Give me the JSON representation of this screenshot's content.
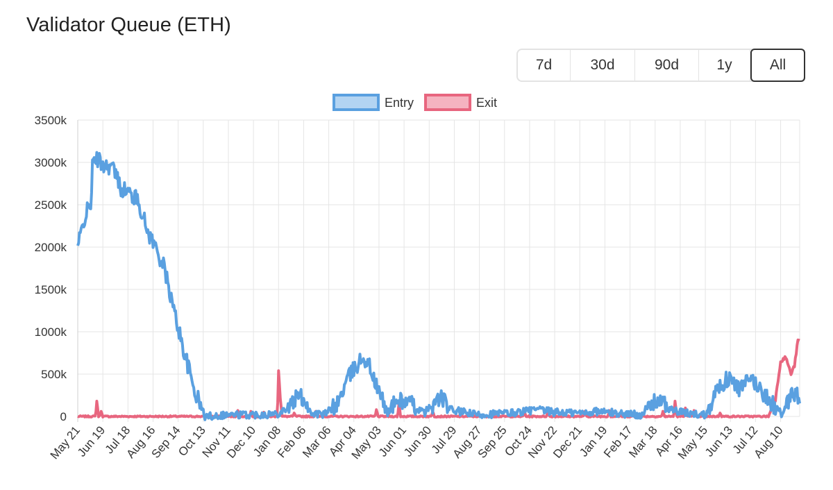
{
  "page": {
    "title": "Validator Queue (ETH)"
  },
  "range_selector": {
    "options": [
      "7d",
      "30d",
      "90d",
      "1y",
      "All"
    ],
    "selected": "All"
  },
  "colors": {
    "entry_line": "#5aa0e0",
    "entry_fill": "#b3d4f2",
    "exit_line": "#e8667f",
    "exit_fill": "#f5b3c0",
    "grid": "#e5e5e5",
    "tick_text": "#333333"
  },
  "chart_data": {
    "type": "line",
    "title": "",
    "xlabel": "",
    "ylabel": "",
    "legend_position": "top-center",
    "grid": true,
    "ylim": [
      0,
      3500000
    ],
    "y_ticks": [
      "0",
      "500k",
      "1000k",
      "1500k",
      "2000k",
      "2500k",
      "3000k",
      "3500k"
    ],
    "x_tick_labels": [
      "May 21",
      "Jun 19",
      "Jul 18",
      "Aug 16",
      "Sep 14",
      "Oct 13",
      "Nov 11",
      "Dec 10",
      "Jan 08",
      "Feb 06",
      "Mar 06",
      "Apr 04",
      "May 03",
      "Jun 01",
      "Jun 30",
      "Jul 29",
      "Aug 27",
      "Sep 25",
      "Oct 24",
      "Nov 22",
      "Dec 21",
      "Jan 19",
      "Feb 17",
      "Mar 18",
      "Apr 16",
      "May 15",
      "Jun 13",
      "Jul 12",
      "Aug 10"
    ],
    "x_tick_index_step": 29,
    "num_points": 835,
    "series": [
      {
        "name": "Entry",
        "color": "#5aa0e0",
        "anchors": [
          [
            0,
            2000000
          ],
          [
            8,
            2350000
          ],
          [
            12,
            2450000
          ],
          [
            15,
            2500000
          ],
          [
            17,
            2950000
          ],
          [
            22,
            3050000
          ],
          [
            28,
            2980000
          ],
          [
            40,
            2950000
          ],
          [
            50,
            2700000
          ],
          [
            58,
            2650000
          ],
          [
            70,
            2550000
          ],
          [
            80,
            2200000
          ],
          [
            90,
            2000000
          ],
          [
            100,
            1750000
          ],
          [
            110,
            1300000
          ],
          [
            122,
            800000
          ],
          [
            135,
            300000
          ],
          [
            147,
            0
          ],
          [
            170,
            20000
          ],
          [
            200,
            20000
          ],
          [
            230,
            30000
          ],
          [
            245,
            120000
          ],
          [
            255,
            250000
          ],
          [
            262,
            200000
          ],
          [
            270,
            40000
          ],
          [
            285,
            20000
          ],
          [
            300,
            150000
          ],
          [
            312,
            450000
          ],
          [
            322,
            600000
          ],
          [
            330,
            700000
          ],
          [
            337,
            600000
          ],
          [
            345,
            350000
          ],
          [
            358,
            50000
          ],
          [
            370,
            200000
          ],
          [
            385,
            150000
          ],
          [
            400,
            40000
          ],
          [
            420,
            230000
          ],
          [
            430,
            80000
          ],
          [
            460,
            20000
          ],
          [
            500,
            40000
          ],
          [
            530,
            80000
          ],
          [
            550,
            50000
          ],
          [
            580,
            40000
          ],
          [
            600,
            60000
          ],
          [
            620,
            40000
          ],
          [
            650,
            20000
          ],
          [
            670,
            200000
          ],
          [
            685,
            80000
          ],
          [
            700,
            40000
          ],
          [
            725,
            20000
          ],
          [
            740,
            350000
          ],
          [
            752,
            450000
          ],
          [
            765,
            320000
          ],
          [
            778,
            450000
          ],
          [
            790,
            300000
          ],
          [
            800,
            180000
          ],
          [
            808,
            80000
          ],
          [
            815,
            20000
          ],
          [
            822,
            200000
          ],
          [
            828,
            280000
          ],
          [
            834,
            220000
          ]
        ],
        "noise": 45000
      },
      {
        "name": "Exit",
        "color": "#e8667f",
        "anchors": [
          [
            0,
            0
          ],
          [
            200,
            0
          ],
          [
            222,
            0
          ],
          [
            232,
            0
          ],
          [
            500,
            0
          ],
          [
            700,
            0
          ],
          [
            770,
            0
          ],
          [
            798,
            0
          ],
          [
            806,
            200000
          ],
          [
            812,
            650000
          ],
          [
            818,
            700000
          ],
          [
            824,
            500000
          ],
          [
            828,
            600000
          ],
          [
            832,
            900000
          ],
          [
            834,
            890000
          ]
        ],
        "spikes": [
          [
            22,
            180000
          ],
          [
            27,
            60000
          ],
          [
            185,
            70000
          ],
          [
            200,
            60000
          ],
          [
            215,
            50000
          ],
          [
            232,
            540000
          ],
          [
            233,
            380000
          ],
          [
            234,
            200000
          ],
          [
            250,
            40000
          ],
          [
            275,
            60000
          ],
          [
            345,
            80000
          ],
          [
            371,
            150000
          ],
          [
            410,
            60000
          ],
          [
            516,
            50000
          ],
          [
            543,
            60000
          ],
          [
            586,
            60000
          ],
          [
            614,
            70000
          ],
          [
            676,
            60000
          ],
          [
            690,
            180000
          ],
          [
            702,
            100000
          ],
          [
            712,
            70000
          ],
          [
            742,
            40000
          ]
        ],
        "noise": 8000
      }
    ]
  }
}
